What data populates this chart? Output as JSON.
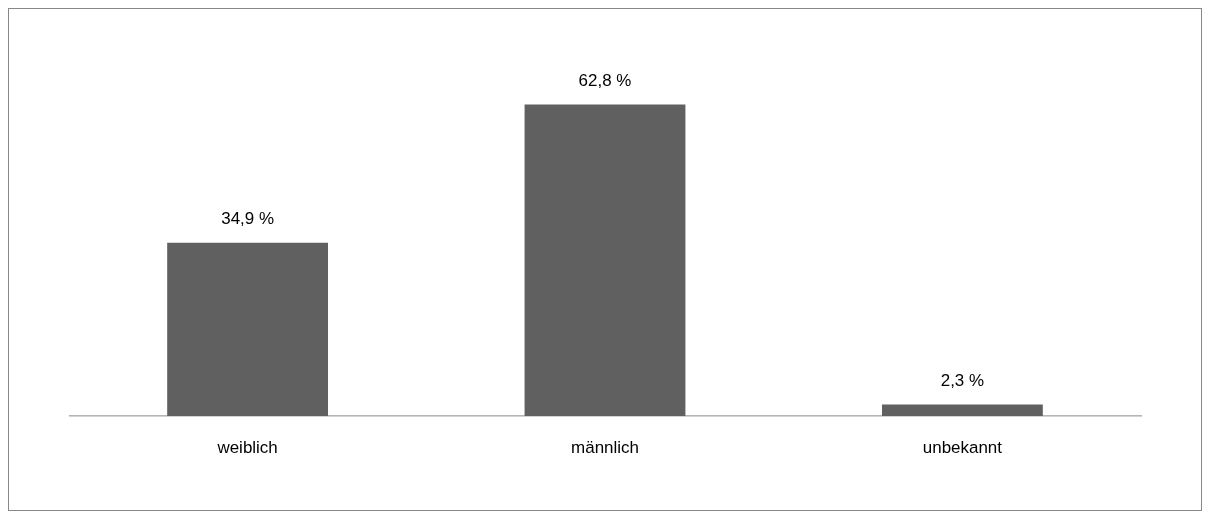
{
  "chart_data": {
    "type": "bar",
    "categories": [
      "weiblich",
      "männlich",
      "unbekannt"
    ],
    "values": [
      34.9,
      62.8,
      2.3
    ],
    "value_labels": [
      "34,9 %",
      "62,8 %",
      "2,3 %"
    ],
    "color": "#606060",
    "grid": false,
    "legend": false,
    "tick_labels": "x"
  }
}
